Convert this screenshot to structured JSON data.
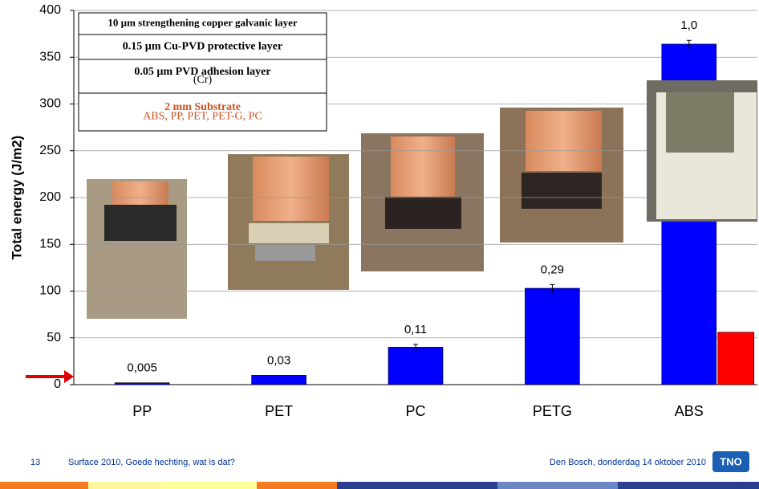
{
  "chart_data": {
    "type": "bar",
    "y_label": "Total energy (J/m2)",
    "categories": [
      "PP",
      "PET",
      "PC",
      "PETG",
      "ABS"
    ],
    "series": [
      {
        "color": "#0000ff",
        "values": [
          2,
          10,
          40,
          103,
          364
        ],
        "errors": [
          0,
          0,
          3,
          4,
          4
        ]
      },
      {
        "color": "#ff0000",
        "values": [
          null,
          null,
          null,
          null,
          56
        ]
      }
    ],
    "bar_annotations": [
      "0,005",
      "0,03",
      "0,11",
      "0,29",
      "1,0"
    ],
    "ylim": [
      0,
      400
    ],
    "yticks": [
      0,
      50,
      100,
      150,
      200,
      250,
      300,
      350,
      400
    ],
    "grid": true,
    "inset": {
      "rows": [
        [
          "10 µm strengthening copper galvanic layer"
        ],
        [
          "0.15 µm Cu-PVD protective layer"
        ],
        [
          "0.05 µm PVD adhesion layer",
          "(Cr)"
        ],
        [
          "2 mm Substrate",
          "ABS, PP, PET, PET-G, PC"
        ]
      ]
    }
  },
  "footer": {
    "page": "13",
    "title": "Surface 2010, Goede hechting, wat is dat?",
    "place_date": "Den Bosch, donderdag 14 oktober 2010",
    "logo": "TNO"
  }
}
